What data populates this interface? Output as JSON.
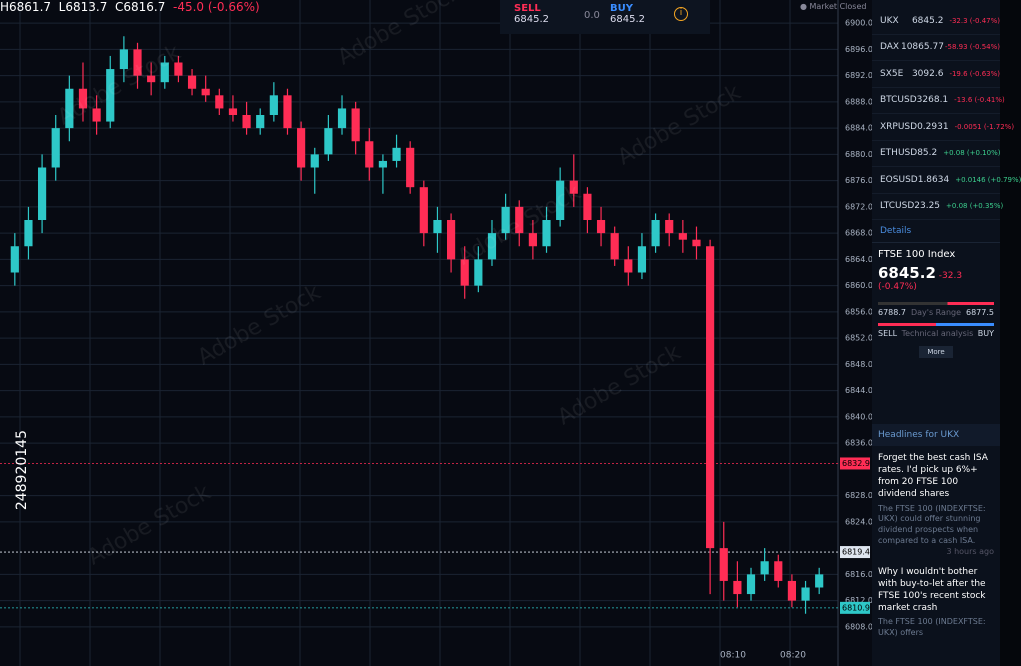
{
  "header": {
    "ohlc": {
      "h": "H6861.7",
      "l": "L6813.7",
      "c": "C6816.7",
      "change": "-45.0 (-0.66%)"
    },
    "sell": {
      "label": "SELL",
      "price": "6845.2"
    },
    "spread": "0.0",
    "buy": {
      "label": "BUY",
      "price": "6845.2"
    },
    "status": "Market Closed"
  },
  "chart": {
    "up_color": "#2ec8c8",
    "down_color": "#ff2d55",
    "ylim": [
      6806,
      6902
    ],
    "yticks": [
      {
        "value": 6900,
        "label": "6900.0"
      },
      {
        "value": 6896,
        "label": "6896.0"
      },
      {
        "value": 6892,
        "label": "6892.0"
      },
      {
        "value": 6888,
        "label": "6888.0"
      },
      {
        "value": 6884,
        "label": "6884.0"
      },
      {
        "value": 6880,
        "label": "6880.0"
      },
      {
        "value": 6876,
        "label": "6876.0"
      },
      {
        "value": 6872,
        "label": "6872.0"
      },
      {
        "value": 6868,
        "label": "6868.0"
      },
      {
        "value": 6864,
        "label": "6864.0"
      },
      {
        "value": 6860,
        "label": "6860.0"
      },
      {
        "value": 6856,
        "label": "6856.0"
      },
      {
        "value": 6852,
        "label": "6852.0"
      },
      {
        "value": 6848,
        "label": "6848.0"
      },
      {
        "value": 6844,
        "label": "6844.0"
      },
      {
        "value": 6840,
        "label": "6840.0"
      },
      {
        "value": 6836,
        "label": "6836.0"
      },
      {
        "value": 6828,
        "label": "6828.0"
      },
      {
        "value": 6824,
        "label": "6824.0"
      },
      {
        "value": 6816,
        "label": "6816.0"
      },
      {
        "value": 6812,
        "label": "6812.0"
      },
      {
        "value": 6808,
        "label": "6808.0"
      }
    ],
    "markers": [
      {
        "value": 6832.9,
        "label": "6832.9",
        "color": "#ff2d55"
      },
      {
        "value": 6819.4,
        "label": "6819.4",
        "color": "#dfe6f0"
      },
      {
        "value": 6810.9,
        "label": "6810.9",
        "color": "#2ec8c8"
      }
    ],
    "xticks": [
      "08:10",
      "08:20"
    ],
    "candles": [
      [
        6862,
        6868,
        6860,
        6866
      ],
      [
        6866,
        6872,
        6864,
        6870
      ],
      [
        6870,
        6880,
        6868,
        6878
      ],
      [
        6878,
        6886,
        6876,
        6884
      ],
      [
        6884,
        6892,
        6882,
        6890
      ],
      [
        6890,
        6894,
        6885,
        6887
      ],
      [
        6887,
        6889,
        6883,
        6885
      ],
      [
        6885,
        6895,
        6884,
        6893
      ],
      [
        6893,
        6898,
        6891,
        6896
      ],
      [
        6896,
        6897,
        6890,
        6892
      ],
      [
        6892,
        6894,
        6889,
        6891
      ],
      [
        6891,
        6895,
        6890,
        6894
      ],
      [
        6894,
        6895,
        6891,
        6892
      ],
      [
        6892,
        6893,
        6889,
        6890
      ],
      [
        6890,
        6892,
        6888,
        6889
      ],
      [
        6889,
        6890,
        6886,
        6887
      ],
      [
        6887,
        6889,
        6885,
        6886
      ],
      [
        6886,
        6888,
        6883,
        6884
      ],
      [
        6884,
        6887,
        6883,
        6886
      ],
      [
        6886,
        6891,
        6885,
        6889
      ],
      [
        6889,
        6890,
        6883,
        6884
      ],
      [
        6884,
        6885,
        6876,
        6878
      ],
      [
        6878,
        6881,
        6874,
        6880
      ],
      [
        6880,
        6886,
        6879,
        6884
      ],
      [
        6884,
        6889,
        6883,
        6887
      ],
      [
        6887,
        6888,
        6880,
        6882
      ],
      [
        6882,
        6884,
        6876,
        6878
      ],
      [
        6878,
        6880,
        6874,
        6879
      ],
      [
        6879,
        6883,
        6878,
        6881
      ],
      [
        6881,
        6882,
        6874,
        6875
      ],
      [
        6875,
        6876,
        6866,
        6868
      ],
      [
        6868,
        6872,
        6865,
        6870
      ],
      [
        6870,
        6871,
        6862,
        6864
      ],
      [
        6864,
        6866,
        6858,
        6860
      ],
      [
        6860,
        6866,
        6859,
        6864
      ],
      [
        6864,
        6870,
        6863,
        6868
      ],
      [
        6868,
        6874,
        6867,
        6872
      ],
      [
        6872,
        6873,
        6866,
        6868
      ],
      [
        6868,
        6870,
        6864,
        6866
      ],
      [
        6866,
        6872,
        6865,
        6870
      ],
      [
        6870,
        6878,
        6869,
        6876
      ],
      [
        6876,
        6880,
        6872,
        6874
      ],
      [
        6874,
        6875,
        6868,
        6870
      ],
      [
        6870,
        6872,
        6866,
        6868
      ],
      [
        6868,
        6869,
        6863,
        6864
      ],
      [
        6864,
        6866,
        6860,
        6862
      ],
      [
        6862,
        6868,
        6861,
        6866
      ],
      [
        6866,
        6871,
        6865,
        6870
      ],
      [
        6870,
        6871,
        6866,
        6868
      ],
      [
        6868,
        6870,
        6865,
        6867
      ],
      [
        6867,
        6869,
        6864,
        6866
      ],
      [
        6866,
        6867,
        6813,
        6820
      ],
      [
        6820,
        6824,
        6812,
        6815
      ],
      [
        6815,
        6818,
        6811,
        6813
      ],
      [
        6813,
        6817,
        6812,
        6816
      ],
      [
        6816,
        6820,
        6815,
        6818
      ],
      [
        6818,
        6819,
        6814,
        6815
      ],
      [
        6815,
        6816,
        6811,
        6812
      ],
      [
        6812,
        6815,
        6810,
        6814
      ],
      [
        6814,
        6817,
        6813,
        6816
      ]
    ]
  },
  "watchlist": {
    "rows": [
      [
        "UKX",
        "6845.2",
        "-32.3 (-0.47%)"
      ],
      [
        "DAX",
        "10865.77",
        "-58.93 (-0.54%)"
      ],
      [
        "SX5E",
        "3092.6",
        "-19.6 (-0.63%)"
      ],
      [
        "BTCUSD",
        "3268.1",
        "-13.6 (-0.41%)"
      ],
      [
        "XRPUSD",
        "0.2931",
        "-0.0051 (-1.72%)"
      ],
      [
        "ETHUSD",
        "85.2",
        "+0.08 (+0.10%)"
      ],
      [
        "EOSUSD",
        "1.8634",
        "+0.0146 (+0.79%)"
      ],
      [
        "LTCUSD",
        "23.25",
        "+0.08 (+0.35%)"
      ]
    ]
  },
  "details": {
    "tab": "Details",
    "name": "FTSE 100 Index",
    "price": "6845.2",
    "change": "-32.3 (-0.47%)",
    "low": "6788.7",
    "high": "6877.5",
    "range_label": "Day's Range",
    "sell": "SELL",
    "analysis": "Technical analysis",
    "buy": "BUY",
    "more": "More"
  },
  "news": {
    "title": "Headlines for UKX",
    "items": [
      {
        "headline": "Forget the best cash ISA rates. I'd pick up 6%+ from 20 FTSE 100 dividend shares",
        "body": "The FTSE 100 (INDEXFTSE: UKX) could offer stunning dividend prospects when compared to a cash ISA.",
        "time": "3 hours ago"
      },
      {
        "headline": "Why I wouldn't bother with buy-to-let after the FTSE 100's recent stock market crash",
        "body": "The FTSE 100 (INDEXFTSE: UKX) offers"
      }
    ]
  },
  "watermark": {
    "text": "Adobe Stock",
    "id": "248920145"
  }
}
